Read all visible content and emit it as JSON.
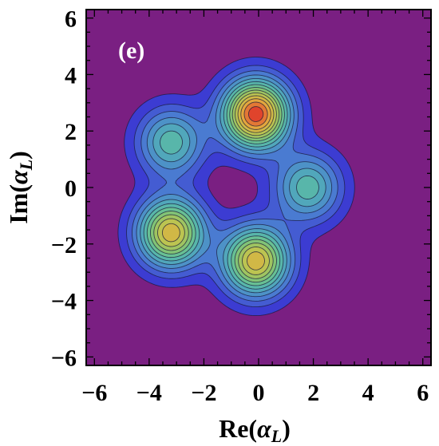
{
  "chart_data": {
    "type": "heatmap",
    "subtype": "contour",
    "panel_label": "(e)",
    "xlabel_main": "Re(",
    "xlabel_var": "α",
    "xlabel_sub": "L",
    "xlabel_close": ")",
    "ylabel_main": "Im(",
    "ylabel_var": "α",
    "ylabel_sub": "L",
    "ylabel_close": ")",
    "xlim": [
      -6.3,
      6.3
    ],
    "ylim": [
      -6.3,
      6.3
    ],
    "x_ticks": [
      -6,
      -4,
      -2,
      0,
      2,
      4,
      6
    ],
    "y_ticks": [
      -6,
      -4,
      -2,
      0,
      2,
      4,
      6
    ],
    "x_tick_labels": [
      "−6",
      "−4",
      "−2",
      "0",
      "2",
      "4",
      "6"
    ],
    "y_tick_labels": [
      "−6",
      "−4",
      "−2",
      "0",
      "2",
      "4",
      "6"
    ],
    "grid": false,
    "background_color": "#7a1f82",
    "peaks": [
      {
        "x": -0.1,
        "y": 2.6,
        "amplitude": 1.0
      },
      {
        "x": -0.1,
        "y": -2.6,
        "amplitude": 0.8
      },
      {
        "x": -3.2,
        "y": -1.6,
        "amplitude": 0.8
      },
      {
        "x": -3.2,
        "y": 1.6,
        "amplitude": 0.45
      },
      {
        "x": 1.8,
        "y": 0.0,
        "amplitude": 0.45
      }
    ],
    "peak_width": 0.85,
    "contour_levels": 14,
    "colorscale": [
      "#3c3cd2",
      "#4a78d2",
      "#4fa3c0",
      "#5cbfa0",
      "#8ec46a",
      "#c4c44c",
      "#e6a43c",
      "#e0442c"
    ]
  }
}
